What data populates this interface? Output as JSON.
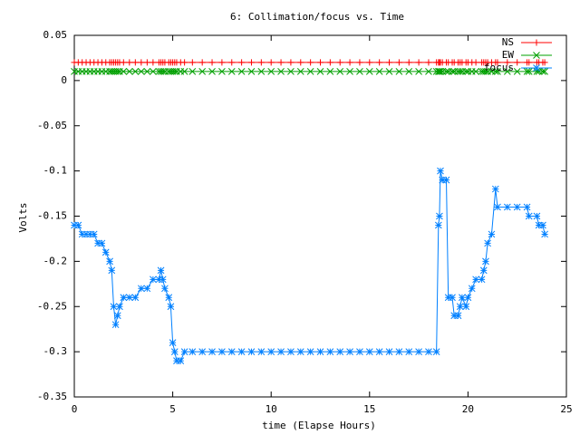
{
  "chart_data": {
    "type": "line",
    "title": "6: Collimation/focus vs. Time",
    "x_label": "time (Elapse Hours)",
    "y_label": "Volts",
    "xlim": [
      0,
      25
    ],
    "xticks": [
      0,
      5,
      10,
      15,
      20,
      25
    ],
    "ylim": [
      -0.35,
      0.05
    ],
    "yticks": [
      0.05,
      0,
      -0.05,
      -0.1,
      -0.15,
      -0.2,
      -0.25,
      -0.3,
      -0.35
    ],
    "grid": false,
    "legend": "top-right",
    "x": [
      0,
      0.2,
      0.4,
      0.6,
      0.8,
      1.0,
      1.2,
      1.4,
      1.6,
      1.8,
      1.9,
      2.0,
      2.1,
      2.2,
      2.3,
      2.5,
      2.8,
      3.1,
      3.4,
      3.7,
      4.0,
      4.3,
      4.4,
      4.5,
      4.6,
      4.8,
      4.9,
      5.0,
      5.1,
      5.2,
      5.4,
      5.6,
      6,
      6.5,
      7,
      7.5,
      8,
      8.5,
      9,
      9.5,
      10,
      10.5,
      11,
      11.5,
      12,
      12.5,
      13,
      13.5,
      14,
      14.5,
      15,
      15.5,
      16,
      16.5,
      17,
      17.5,
      18,
      18.4,
      18.5,
      18.55,
      18.6,
      18.7,
      18.9,
      19.0,
      19.2,
      19.3,
      19.5,
      19.6,
      19.7,
      19.9,
      20.0,
      20.2,
      20.4,
      20.7,
      20.8,
      20.9,
      21.0,
      21.2,
      21.4,
      21.5,
      22.0,
      22.5,
      23.0,
      23.1,
      23.5,
      23.6,
      23.8,
      23.9
    ],
    "series": [
      {
        "name": "NS",
        "color": "#ff0000",
        "marker": "plus",
        "values": [
          0.02,
          0.02,
          0.02,
          0.02,
          0.02,
          0.02,
          0.02,
          0.02,
          0.02,
          0.02,
          0.02,
          0.02,
          0.02,
          0.02,
          0.02,
          0.02,
          0.02,
          0.02,
          0.02,
          0.02,
          0.02,
          0.02,
          0.02,
          0.02,
          0.02,
          0.02,
          0.02,
          0.02,
          0.02,
          0.02,
          0.02,
          0.02,
          0.02,
          0.02,
          0.02,
          0.02,
          0.02,
          0.02,
          0.02,
          0.02,
          0.02,
          0.02,
          0.02,
          0.02,
          0.02,
          0.02,
          0.02,
          0.02,
          0.02,
          0.02,
          0.02,
          0.02,
          0.02,
          0.02,
          0.02,
          0.02,
          0.02,
          0.02,
          0.02,
          0.02,
          0.02,
          0.02,
          0.02,
          0.02,
          0.02,
          0.02,
          0.02,
          0.02,
          0.02,
          0.02,
          0.02,
          0.02,
          0.02,
          0.02,
          0.02,
          0.02,
          0.02,
          0.02,
          0.02,
          0.02,
          0.02,
          0.02,
          0.02,
          0.02,
          0.02,
          0.02,
          0.02,
          0.02
        ]
      },
      {
        "name": "EW",
        "color": "#00a000",
        "marker": "cross",
        "values": [
          0.01,
          0.01,
          0.01,
          0.01,
          0.01,
          0.01,
          0.01,
          0.01,
          0.01,
          0.01,
          0.01,
          0.01,
          0.01,
          0.01,
          0.01,
          0.01,
          0.01,
          0.01,
          0.01,
          0.01,
          0.01,
          0.01,
          0.01,
          0.01,
          0.01,
          0.01,
          0.01,
          0.01,
          0.01,
          0.01,
          0.01,
          0.01,
          0.01,
          0.01,
          0.01,
          0.01,
          0.01,
          0.01,
          0.01,
          0.01,
          0.01,
          0.01,
          0.01,
          0.01,
          0.01,
          0.01,
          0.01,
          0.01,
          0.01,
          0.01,
          0.01,
          0.01,
          0.01,
          0.01,
          0.01,
          0.01,
          0.01,
          0.01,
          0.01,
          0.01,
          0.01,
          0.01,
          0.01,
          0.01,
          0.01,
          0.01,
          0.01,
          0.01,
          0.01,
          0.01,
          0.01,
          0.01,
          0.01,
          0.01,
          0.01,
          0.01,
          0.01,
          0.01,
          0.01,
          0.01,
          0.01,
          0.01,
          0.01,
          0.01,
          0.01,
          0.01,
          0.01,
          0.01
        ]
      },
      {
        "name": "focus",
        "color": "#0080ff",
        "marker": "star",
        "values": [
          -0.16,
          -0.16,
          -0.17,
          -0.17,
          -0.17,
          -0.17,
          -0.18,
          -0.18,
          -0.19,
          -0.2,
          -0.21,
          -0.25,
          -0.27,
          -0.26,
          -0.25,
          -0.24,
          -0.24,
          -0.24,
          -0.23,
          -0.23,
          -0.22,
          -0.22,
          -0.21,
          -0.22,
          -0.23,
          -0.24,
          -0.25,
          -0.29,
          -0.3,
          -0.31,
          -0.31,
          -0.3,
          -0.3,
          -0.3,
          -0.3,
          -0.3,
          -0.3,
          -0.3,
          -0.3,
          -0.3,
          -0.3,
          -0.3,
          -0.3,
          -0.3,
          -0.3,
          -0.3,
          -0.3,
          -0.3,
          -0.3,
          -0.3,
          -0.3,
          -0.3,
          -0.3,
          -0.3,
          -0.3,
          -0.3,
          -0.3,
          -0.3,
          -0.16,
          -0.15,
          -0.1,
          -0.11,
          -0.11,
          -0.24,
          -0.24,
          -0.26,
          -0.26,
          -0.25,
          -0.24,
          -0.25,
          -0.24,
          -0.23,
          -0.22,
          -0.22,
          -0.21,
          -0.2,
          -0.18,
          -0.17,
          -0.12,
          -0.14,
          -0.14,
          -0.14,
          -0.14,
          -0.15,
          -0.15,
          -0.16,
          -0.16,
          -0.17
        ]
      }
    ]
  }
}
